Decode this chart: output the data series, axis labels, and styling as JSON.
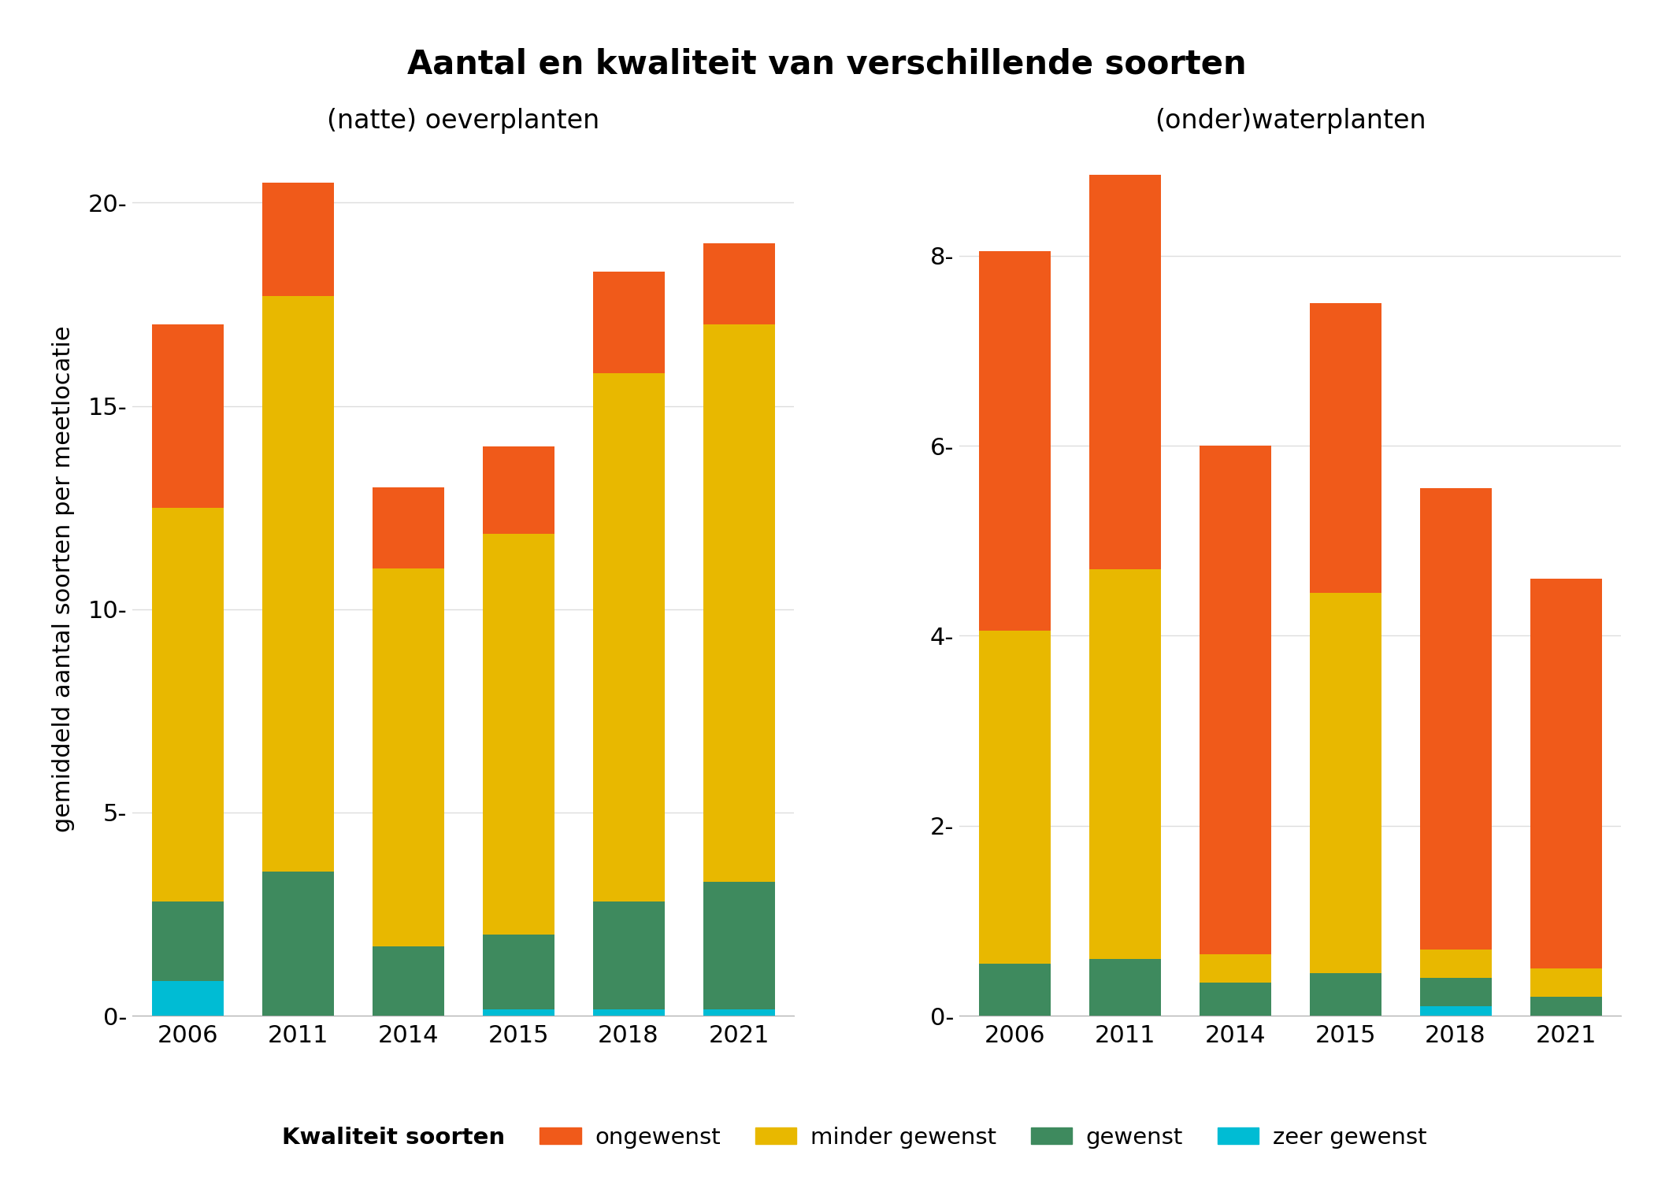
{
  "title": "Aantal en kwaliteit van verschillende soorten",
  "ylabel": "gemiddeld aantal soorten per meetlocatie",
  "left_subtitle": "(natte) oeverplanten",
  "right_subtitle": "(onder)waterplanten",
  "categories": [
    "2006",
    "2011",
    "2014",
    "2015",
    "2018",
    "2021"
  ],
  "left": {
    "zeer_gewenst": [
      0.85,
      0.0,
      0.0,
      0.15,
      0.15,
      0.15
    ],
    "gewenst": [
      1.95,
      3.55,
      1.7,
      1.85,
      2.65,
      3.15
    ],
    "minder_gewenst": [
      9.7,
      14.15,
      9.3,
      9.85,
      13.0,
      13.7
    ],
    "ongewenst": [
      4.5,
      2.8,
      2.0,
      2.15,
      2.5,
      2.0
    ]
  },
  "right": {
    "zeer_gewenst": [
      0.0,
      0.0,
      0.0,
      0.0,
      0.1,
      0.0
    ],
    "gewenst": [
      0.55,
      0.6,
      0.35,
      0.45,
      0.3,
      0.2
    ],
    "minder_gewenst": [
      3.5,
      4.1,
      0.3,
      4.0,
      0.3,
      0.3
    ],
    "ongewenst": [
      4.0,
      4.15,
      5.35,
      3.05,
      4.85,
      4.1
    ]
  },
  "colors": {
    "zeer_gewenst": "#00BCD4",
    "gewenst": "#3E8A5E",
    "minder_gewenst": "#E8B800",
    "ongewenst": "#F05A1A"
  },
  "legend_labels": {
    "ongewenst": "ongewenst",
    "minder_gewenst": "minder gewenst",
    "gewenst": "gewenst",
    "zeer_gewenst": "zeer gewenst"
  },
  "left_yticks": [
    0,
    5,
    10,
    15,
    20
  ],
  "right_yticks": [
    0,
    2,
    4,
    6,
    8
  ],
  "left_ylim": [
    0,
    21.5
  ],
  "right_ylim": [
    0,
    9.2
  ],
  "background_color": "#FFFFFF",
  "grid_color": "#DDDDDD"
}
